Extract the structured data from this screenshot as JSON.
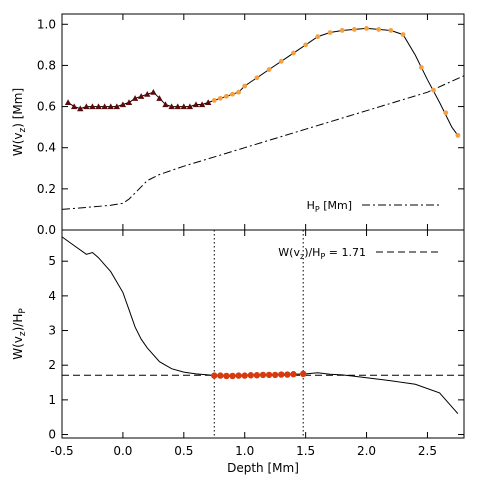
{
  "chart_data": [
    {
      "type": "line",
      "panel": "top",
      "ylabel": "W(v_z) [Mm]",
      "ylabel_main": "W(v",
      "ylabel_sub": "z",
      "ylabel_tail": ") [Mm]",
      "xlim": [
        -0.5,
        2.8
      ],
      "ylim": [
        0.0,
        1.05
      ],
      "xticks": [
        -0.5,
        0.0,
        0.5,
        1.0,
        1.5,
        2.0,
        2.5
      ],
      "yticks": [
        "0.0",
        "0.2",
        "0.4",
        "0.6",
        "0.8",
        "1.0"
      ],
      "ytick_values": [
        0.0,
        0.2,
        0.4,
        0.6,
        0.8,
        1.0
      ],
      "legend": {
        "label": "H_P [Mm]",
        "label_main": "H",
        "label_sub": "P",
        "label_tail": " [Mm]",
        "placement": "lower-right",
        "style": "dash-dot"
      },
      "series": [
        {
          "role": "W(v_z) curve",
          "style": "solid",
          "color": "#000000",
          "x": [
            -0.45,
            -0.4,
            -0.35,
            -0.3,
            -0.25,
            -0.2,
            -0.15,
            -0.1,
            -0.05,
            0.0,
            0.05,
            0.1,
            0.15,
            0.2,
            0.25,
            0.3,
            0.35,
            0.4,
            0.45,
            0.5,
            0.55,
            0.6,
            0.65,
            0.7,
            0.75,
            0.8,
            0.85,
            0.9,
            0.95,
            1.0,
            1.1,
            1.2,
            1.3,
            1.4,
            1.5,
            1.6,
            1.7,
            1.8,
            1.9,
            2.0,
            2.1,
            2.2,
            2.3,
            2.4,
            2.5,
            2.6,
            2.7,
            2.75
          ],
          "y": [
            0.62,
            0.6,
            0.59,
            0.6,
            0.6,
            0.6,
            0.6,
            0.6,
            0.6,
            0.61,
            0.62,
            0.64,
            0.65,
            0.66,
            0.67,
            0.64,
            0.61,
            0.6,
            0.6,
            0.6,
            0.6,
            0.61,
            0.61,
            0.62,
            0.63,
            0.64,
            0.65,
            0.66,
            0.67,
            0.7,
            0.74,
            0.78,
            0.82,
            0.86,
            0.9,
            0.94,
            0.96,
            0.97,
            0.975,
            0.98,
            0.975,
            0.97,
            0.95,
            0.85,
            0.73,
            0.62,
            0.5,
            0.46
          ]
        },
        {
          "role": "dark red triangle markers",
          "marker": "triangle",
          "color": "#5a0a0a",
          "x": [
            -0.45,
            -0.4,
            -0.35,
            -0.3,
            -0.25,
            -0.2,
            -0.15,
            -0.1,
            -0.05,
            0.0,
            0.05,
            0.1,
            0.15,
            0.2,
            0.25,
            0.3,
            0.35,
            0.4,
            0.45,
            0.5,
            0.55,
            0.6,
            0.65,
            0.7
          ],
          "y": [
            0.62,
            0.6,
            0.59,
            0.6,
            0.6,
            0.6,
            0.6,
            0.6,
            0.6,
            0.61,
            0.62,
            0.64,
            0.65,
            0.66,
            0.67,
            0.64,
            0.61,
            0.6,
            0.6,
            0.6,
            0.6,
            0.61,
            0.61,
            0.62
          ]
        },
        {
          "role": "orange markers",
          "marker": "circle",
          "color": "#f5a040",
          "x": [
            0.75,
            0.8,
            0.85,
            0.9,
            0.95,
            1.0,
            1.1,
            1.2,
            1.3,
            1.4,
            1.5,
            1.6,
            1.7,
            1.8,
            1.9,
            2.0,
            2.1,
            2.2,
            2.3,
            2.45,
            2.55,
            2.65,
            2.75
          ],
          "y": [
            0.63,
            0.64,
            0.65,
            0.66,
            0.67,
            0.7,
            0.74,
            0.78,
            0.82,
            0.86,
            0.9,
            0.94,
            0.96,
            0.97,
            0.975,
            0.98,
            0.975,
            0.97,
            0.95,
            0.79,
            0.68,
            0.57,
            0.46
          ]
        },
        {
          "role": "H_P dash-dot",
          "style": "dash-dot",
          "color": "#000000",
          "x": [
            -0.5,
            -0.3,
            -0.1,
            0.0,
            0.05,
            0.1,
            0.15,
            0.2,
            0.3,
            0.5,
            1.0,
            1.5,
            2.0,
            2.5,
            2.8
          ],
          "y": [
            0.1,
            0.11,
            0.12,
            0.13,
            0.15,
            0.18,
            0.21,
            0.24,
            0.27,
            0.31,
            0.4,
            0.49,
            0.58,
            0.67,
            0.75
          ]
        }
      ]
    },
    {
      "type": "line",
      "panel": "bottom",
      "xlabel": "Depth [Mm]",
      "ylabel": "W(v_z)/H_P",
      "ylabel_main": "W(v",
      "ylabel_sub": "z",
      "ylabel_mid": ")/H",
      "ylabel_sub2": "P",
      "xlim": [
        -0.5,
        2.8
      ],
      "ylim": [
        -0.1,
        5.9
      ],
      "xticks": [
        "-0.5",
        "0.0",
        "0.5",
        "1.0",
        "1.5",
        "2.0",
        "2.5"
      ],
      "xtick_values": [
        -0.5,
        0.0,
        0.5,
        1.0,
        1.5,
        2.0,
        2.5
      ],
      "yticks": [
        "0",
        "1",
        "2",
        "3",
        "4",
        "5"
      ],
      "ytick_values": [
        0,
        1,
        2,
        3,
        4,
        5
      ],
      "vlines": [
        0.75,
        1.48
      ],
      "hline": 1.71,
      "legend": {
        "label": "W(v_z)/H_P = 1.71",
        "label_main": "W(v",
        "label_sub": "z",
        "label_mid": ")/H",
        "label_sub2": "P",
        "label_tail": " = 1.71",
        "placement": "top-right",
        "style": "dashed"
      },
      "series": [
        {
          "role": "ratio curve",
          "style": "solid",
          "color": "#000000",
          "x": [
            -0.5,
            -0.4,
            -0.3,
            -0.25,
            -0.2,
            -0.15,
            -0.1,
            -0.05,
            0.0,
            0.05,
            0.1,
            0.15,
            0.2,
            0.3,
            0.4,
            0.5,
            0.6,
            0.7,
            0.75,
            0.8,
            0.9,
            1.0,
            1.1,
            1.2,
            1.3,
            1.4,
            1.5,
            1.6,
            1.7,
            1.8,
            1.9,
            2.0,
            2.2,
            2.4,
            2.6,
            2.75
          ],
          "y": [
            5.7,
            5.45,
            5.2,
            5.25,
            5.1,
            4.9,
            4.7,
            4.4,
            4.1,
            3.6,
            3.1,
            2.75,
            2.5,
            2.1,
            1.9,
            1.8,
            1.75,
            1.72,
            1.7,
            1.7,
            1.7,
            1.71,
            1.71,
            1.72,
            1.73,
            1.74,
            1.75,
            1.78,
            1.74,
            1.72,
            1.68,
            1.64,
            1.55,
            1.45,
            1.2,
            0.6
          ]
        },
        {
          "role": "orange-red markers",
          "marker": "circle",
          "color": "#d83a10",
          "x": [
            0.75,
            0.8,
            0.85,
            0.9,
            0.95,
            1.0,
            1.05,
            1.1,
            1.15,
            1.2,
            1.25,
            1.3,
            1.35,
            1.4,
            1.48
          ],
          "y": [
            1.7,
            1.7,
            1.69,
            1.69,
            1.7,
            1.7,
            1.71,
            1.71,
            1.72,
            1.72,
            1.72,
            1.73,
            1.73,
            1.74,
            1.75
          ]
        }
      ]
    }
  ]
}
